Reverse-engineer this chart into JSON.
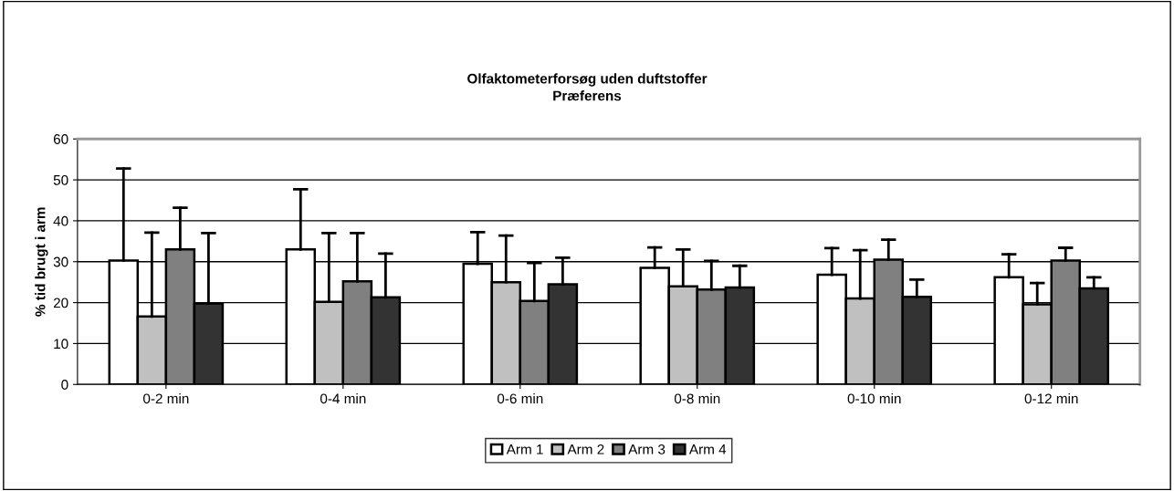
{
  "chart_data": {
    "type": "bar",
    "title": "Olfaktometerforsøg uden duftstoffer\nPræferens",
    "ylabel": "% tid brugt i arm",
    "categories": [
      "0-2 min",
      "0-4 min",
      "0-6 min",
      "0-8 min",
      "0-10 min",
      "0-12 min"
    ],
    "series": [
      {
        "name": "Arm 1",
        "color": "#ffffff",
        "values": [
          30.3,
          33.0,
          29.5,
          28.5,
          26.8,
          26.2
        ],
        "errors": [
          [
            30.3,
            52.8
          ],
          [
            33.0,
            47.7
          ],
          [
            29.5,
            37.2
          ],
          [
            28.5,
            33.5
          ],
          [
            26.8,
            33.3
          ],
          [
            26.2,
            31.8
          ]
        ]
      },
      {
        "name": "Arm 2",
        "color": "#c0c0c0",
        "values": [
          16.6,
          20.2,
          25.0,
          24.0,
          21.0,
          19.6
        ],
        "errors": [
          [
            16.6,
            37.1
          ],
          [
            20.2,
            37.0
          ],
          [
            25.0,
            36.4
          ],
          [
            24.0,
            33.0
          ],
          [
            21.0,
            32.8
          ],
          [
            19.6,
            24.8
          ]
        ]
      },
      {
        "name": "Arm 3",
        "color": "#808080",
        "values": [
          33.0,
          25.2,
          20.4,
          23.2,
          30.5,
          30.3
        ],
        "errors": [
          [
            33.0,
            43.2
          ],
          [
            25.2,
            37.0
          ],
          [
            20.4,
            29.7
          ],
          [
            23.2,
            30.2
          ],
          [
            30.5,
            35.4
          ],
          [
            30.3,
            33.4
          ]
        ]
      },
      {
        "name": "Arm 4",
        "color": "#333333",
        "values": [
          19.8,
          21.3,
          24.5,
          23.7,
          21.4,
          23.5
        ],
        "errors": [
          [
            19.8,
            37.0
          ],
          [
            21.3,
            32.0
          ],
          [
            24.5,
            31.0
          ],
          [
            23.7,
            29.0
          ],
          [
            21.4,
            25.6
          ],
          [
            23.5,
            26.2
          ]
        ]
      }
    ],
    "ylim": [
      0,
      60
    ],
    "yticks": [
      0,
      10,
      20,
      30,
      40,
      50,
      60
    ],
    "grid": "y",
    "legend": "bottom"
  }
}
